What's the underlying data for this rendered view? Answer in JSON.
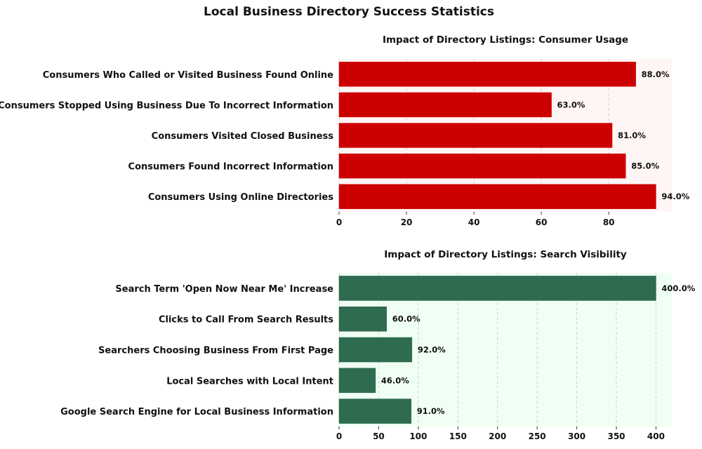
{
  "figure": {
    "title": "Local Business Directory Success Statistics"
  },
  "chart_data": [
    {
      "type": "bar",
      "orientation": "horizontal",
      "title": "Impact of Directory Listings: Consumer Usage",
      "categories": [
        "Consumers Using Online Directories",
        "Consumers Found Incorrect Information",
        "Consumers Visited Closed Business",
        "Consumers Stopped Using Business Due To Incorrect Information",
        "Consumers Who Called or Visited Business Found Online"
      ],
      "values": [
        94,
        85,
        81,
        63,
        88
      ],
      "value_labels": [
        "94.0%",
        "85.0%",
        "81.0%",
        "63.0%",
        "88.0%"
      ],
      "xlim": [
        0,
        98.7
      ],
      "xticks": [
        0,
        20,
        40,
        60,
        80
      ],
      "xtick_labels": [
        "0",
        "20",
        "40",
        "60",
        "80"
      ],
      "xlabel": "",
      "ylabel": "",
      "grid": "vertical dashed",
      "colors": {
        "bar": "#cc0000",
        "background": "#fff5f5"
      }
    },
    {
      "type": "bar",
      "orientation": "horizontal",
      "title": "Impact of Directory Listings: Search Visibility",
      "categories": [
        "Google Search Engine for Local Business Information",
        "Local Searches with Local Intent",
        "Searchers Choosing Business From First Page",
        "Clicks to Call From Search Results",
        "Search Term 'Open Now Near Me' Increase"
      ],
      "values": [
        91,
        46,
        92,
        60,
        400
      ],
      "value_labels": [
        "91.0%",
        "46.0%",
        "92.0%",
        "60.0%",
        "400.0%"
      ],
      "xlim": [
        0,
        420
      ],
      "xticks": [
        0,
        50,
        100,
        150,
        200,
        250,
        300,
        350,
        400
      ],
      "xtick_labels": [
        "0",
        "50",
        "100",
        "150",
        "200",
        "250",
        "300",
        "350",
        "400"
      ],
      "xlabel": "",
      "ylabel": "",
      "grid": "vertical dashed",
      "colors": {
        "bar": "#2e6b4f",
        "background": "#f0fff3"
      }
    }
  ]
}
